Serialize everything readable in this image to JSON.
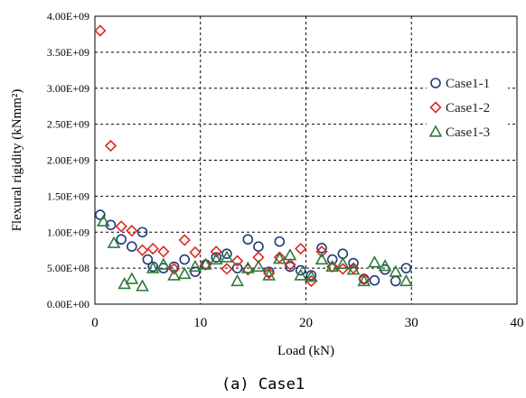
{
  "caption": "(a)  Case1",
  "chart_data": {
    "type": "scatter",
    "title": "",
    "xlabel": "Load (kN)",
    "ylabel": "Flexural rigidity (kNmm²)",
    "xlim": [
      0,
      40
    ],
    "ylim": [
      0,
      4000000000
    ],
    "xticks": [
      0,
      10,
      20,
      30,
      40
    ],
    "yticks": [
      0,
      500000000,
      1000000000,
      1500000000,
      2000000000,
      2500000000,
      3000000000,
      3500000000,
      4000000000
    ],
    "xtick_labels": [
      "0",
      "10",
      "20",
      "30",
      "40"
    ],
    "ytick_labels": [
      "0.00E+00",
      "5.00E+08",
      "1.00E+09",
      "1.50E+09",
      "2.00E+09",
      "2.50E+09",
      "3.00E+09",
      "3.50E+09",
      "4.00E+09"
    ],
    "grid": "dashed",
    "legend_position": "right",
    "series": [
      {
        "name": "Case1-1",
        "marker": "circle",
        "color": "#1f3a7a",
        "x": [
          0.5,
          1.5,
          2.5,
          3.5,
          4.5,
          5.0,
          5.5,
          6.5,
          7.5,
          8.5,
          9.5,
          10.5,
          11.5,
          12.5,
          13.5,
          14.5,
          15.5,
          16.5,
          17.5,
          18.5,
          19.5,
          20.5,
          21.5,
          22.5,
          23.5,
          24.5,
          25.5,
          26.5,
          27.5,
          28.5,
          29.5
        ],
        "y": [
          1240000000,
          1100000000,
          900000000,
          800000000,
          1000000000,
          620000000,
          520000000,
          500000000,
          520000000,
          620000000,
          450000000,
          550000000,
          650000000,
          700000000,
          500000000,
          900000000,
          800000000,
          450000000,
          870000000,
          520000000,
          470000000,
          400000000,
          780000000,
          620000000,
          700000000,
          570000000,
          350000000,
          330000000,
          480000000,
          320000000,
          500000000
        ]
      },
      {
        "name": "Case1-2",
        "marker": "diamond",
        "color": "#e0271e",
        "x": [
          0.5,
          1.5,
          2.5,
          3.5,
          4.5,
          5.5,
          6.5,
          7.5,
          8.5,
          9.5,
          10.5,
          11.5,
          12.5,
          13.5,
          14.5,
          15.5,
          16.5,
          17.5,
          18.5,
          19.5,
          20.5,
          21.5,
          22.5,
          23.5,
          24.5,
          25.5
        ],
        "y": [
          3800000000,
          2200000000,
          1080000000,
          1020000000,
          750000000,
          770000000,
          730000000,
          490000000,
          890000000,
          720000000,
          550000000,
          730000000,
          490000000,
          600000000,
          480000000,
          650000000,
          430000000,
          650000000,
          550000000,
          770000000,
          320000000,
          730000000,
          520000000,
          490000000,
          500000000,
          350000000
        ]
      },
      {
        "name": "Case1-3",
        "marker": "triangle",
        "color": "#2e7a3a",
        "x": [
          0.8,
          1.8,
          2.8,
          3.5,
          4.5,
          5.5,
          6.5,
          7.5,
          8.5,
          9.5,
          10.5,
          11.5,
          12.5,
          13.5,
          14.5,
          15.5,
          16.5,
          17.5,
          18.5,
          19.5,
          20.5,
          21.5,
          22.5,
          23.5,
          24.5,
          25.5,
          26.5,
          27.5,
          28.5,
          29.5
        ],
        "y": [
          1150000000,
          850000000,
          280000000,
          350000000,
          250000000,
          500000000,
          550000000,
          400000000,
          420000000,
          520000000,
          550000000,
          620000000,
          650000000,
          320000000,
          500000000,
          520000000,
          400000000,
          630000000,
          680000000,
          400000000,
          380000000,
          620000000,
          520000000,
          560000000,
          480000000,
          320000000,
          580000000,
          530000000,
          450000000,
          320000000
        ]
      }
    ]
  }
}
